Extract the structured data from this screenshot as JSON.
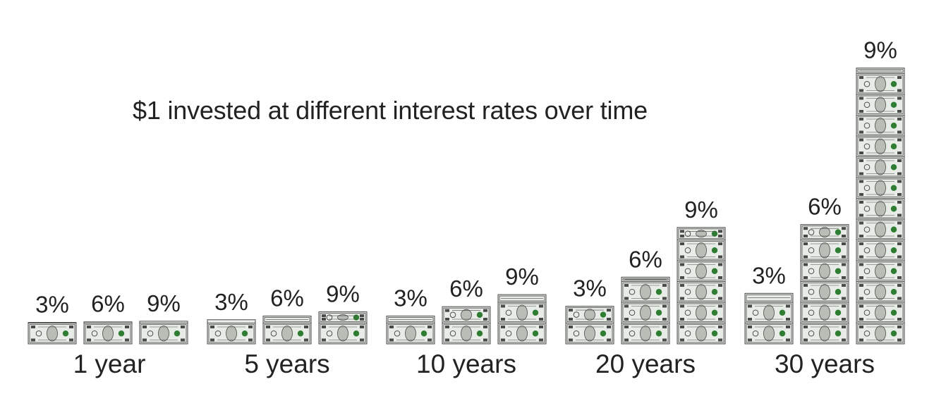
{
  "chart_data": {
    "type": "bar",
    "title": "$1 invested at different interest rates over time",
    "unit_description": "stacked dollar bills",
    "categories": [
      "1 year",
      "5 years",
      "10 years",
      "20 years",
      "30 years"
    ],
    "series": [
      {
        "name": "3%",
        "values": [
          1.03,
          1.16,
          1.34,
          1.81,
          2.43
        ]
      },
      {
        "name": "6%",
        "values": [
          1.06,
          1.34,
          1.79,
          3.21,
          5.74
        ]
      },
      {
        "name": "9%",
        "values": [
          1.09,
          1.54,
          2.37,
          5.6,
          13.27
        ]
      }
    ],
    "ylim": [
      0,
      13.5
    ],
    "grid": false,
    "legend": "none",
    "colors": {
      "bill_face": "#e8ece6",
      "bill_ink": "#4a4a4a",
      "bill_seal": "#2e7d32",
      "text": "#222222"
    }
  }
}
